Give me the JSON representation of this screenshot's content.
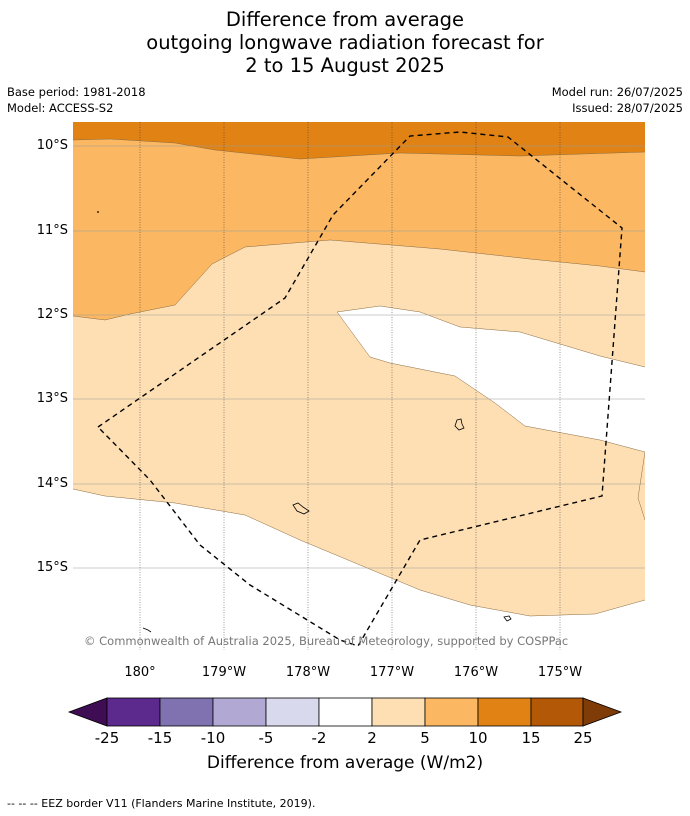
{
  "title": {
    "line1": "Difference from average",
    "line2": "outgoing longwave radiation forecast for",
    "line3": "2 to 15 August 2025"
  },
  "meta": {
    "base_period": "Base period: 1981-2018",
    "model": "Model: ACCESS-S2",
    "model_run": "Model run: 26/07/2025",
    "issued": "Issued: 28/07/2025"
  },
  "map": {
    "lat_labels": [
      "10°S",
      "11°S",
      "12°S",
      "13°S",
      "14°S",
      "15°S"
    ],
    "lon_labels": [
      "180°",
      "179°W",
      "178°W",
      "177°W",
      "176°W",
      "175°W"
    ],
    "copyright": "© Commonwealth of Australia 2025, Bureau of Meteorology, supported by COSPPac"
  },
  "colorbar": {
    "ticks": [
      "-25",
      "-15",
      "-10",
      "-5",
      "-2",
      "2",
      "5",
      "10",
      "15",
      "25"
    ],
    "colors": [
      "#3f0d53",
      "#5b2a8c",
      "#8071b0",
      "#b1a9d3",
      "#d9d9ed",
      "#ffffff",
      "#fddfb3",
      "#fbb761",
      "#e08214",
      "#b35806",
      "#7f3b08"
    ],
    "label": "Difference from average (W/m2)"
  },
  "footnote": "--  --  -- EEZ border V11 (Flanders Marine Institute, 2019)."
}
